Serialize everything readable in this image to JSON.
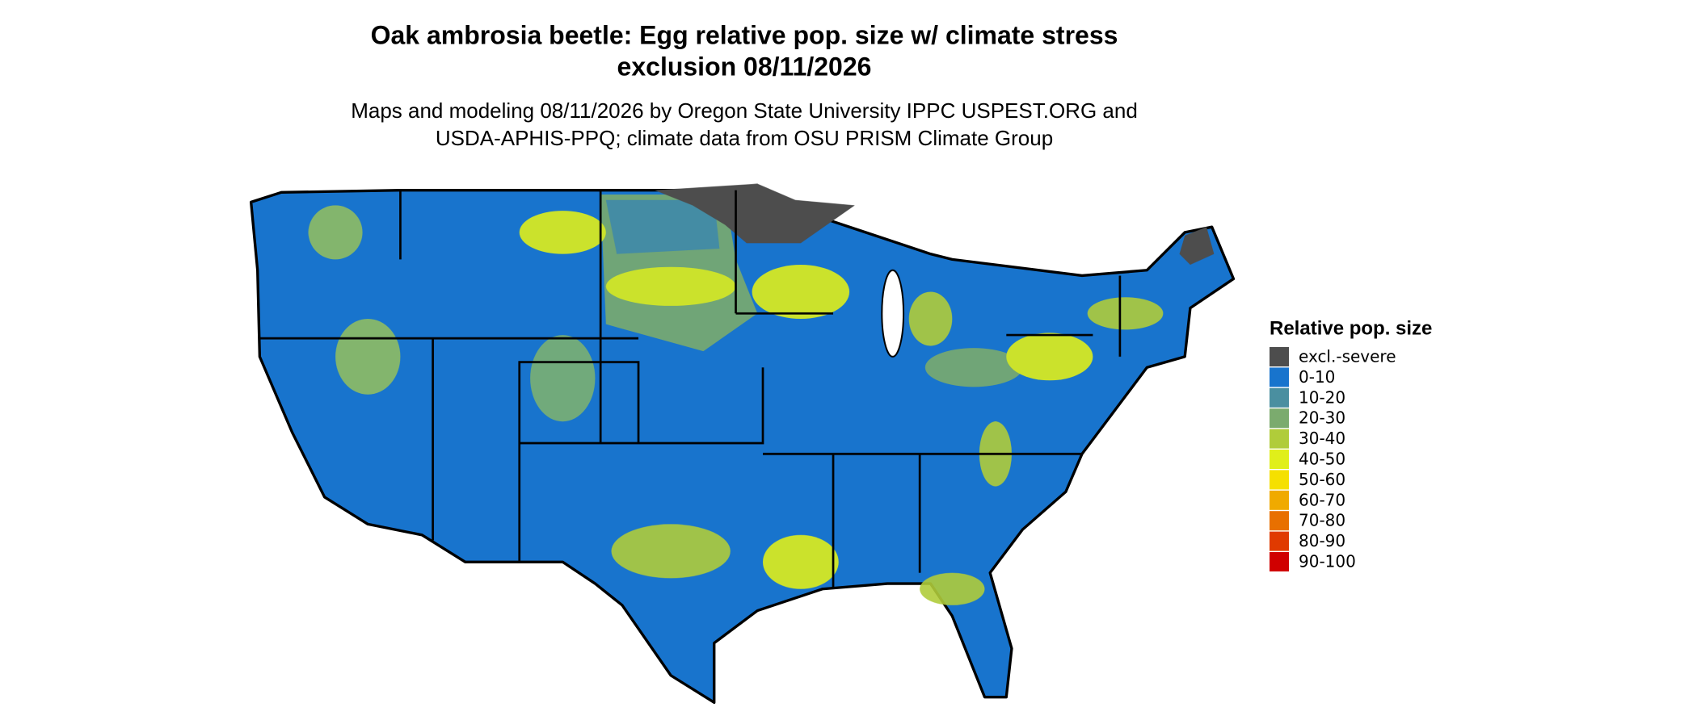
{
  "title": {
    "lines": [
      "Oak ambrosia beetle: Egg relative pop. size w/ climate stress",
      "exclusion 08/11/2026"
    ]
  },
  "subtitle": {
    "lines": [
      "Maps and modeling 08/11/2026 by Oregon State University IPPC USPEST.ORG and",
      "USDA-APHIS-PPQ; climate data from OSU PRISM Climate Group"
    ]
  },
  "legend": {
    "title": "Relative pop. size",
    "items": [
      {
        "label": "excl.-severe",
        "color": "#4d4d4d"
      },
      {
        "label": "0-10",
        "color": "#1874cd"
      },
      {
        "label": "10-20",
        "color": "#4a8fa0"
      },
      {
        "label": "20-30",
        "color": "#7bab6e"
      },
      {
        "label": "30-40",
        "color": "#b0cc3a"
      },
      {
        "label": "40-50",
        "color": "#e0ef1a"
      },
      {
        "label": "50-60",
        "color": "#f5e000"
      },
      {
        "label": "60-70",
        "color": "#f0aa00"
      },
      {
        "label": "70-80",
        "color": "#e87000"
      },
      {
        "label": "80-90",
        "color": "#e03a00"
      },
      {
        "label": "90-100",
        "color": "#d00000"
      }
    ]
  }
}
